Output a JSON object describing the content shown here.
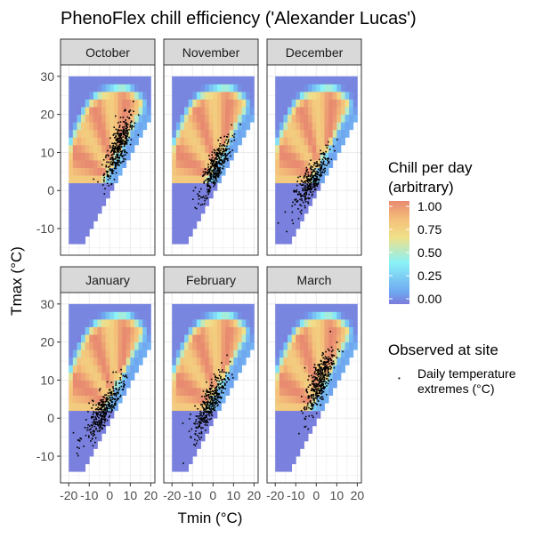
{
  "chart_data": {
    "type": "heatmap",
    "title": "PhenoFlex chill efficiency ('Alexander Lucas')",
    "xlabel": "Tmin (°C)",
    "ylabel": "Tmax (°C)",
    "xlim": [
      -24,
      22
    ],
    "ylim": [
      -17,
      33
    ],
    "x_ticks": [
      -20,
      -10,
      0,
      10,
      20
    ],
    "x_tick_labels": [
      "-20",
      "-10",
      "0",
      "10",
      "20"
    ],
    "y_ticks": [
      -10,
      0,
      10,
      20,
      30
    ],
    "y_tick_labels": [
      "-10",
      "0",
      "10",
      "20",
      "30"
    ],
    "grid": true,
    "facets": [
      "October",
      "November",
      "December",
      "January",
      "February",
      "March"
    ],
    "fill_legend": {
      "title_line1": "Chill per day",
      "title_line2": "(arbitrary)",
      "breaks": [
        1.0,
        0.75,
        0.5,
        0.25,
        0.0
      ],
      "labels": [
        "1.00",
        "0.75",
        "0.50",
        "0.25",
        "0.00"
      ],
      "colors": [
        "#7b7bdb",
        "#6fa8f0",
        "#8af2f7",
        "#f0e088",
        "#f4c07a",
        "#e88a70"
      ]
    },
    "point_legend": {
      "title": "Observed at site",
      "label_line1": "Daily temperature",
      "label_line2": "extremes (°C)"
    },
    "observed_clouds": {
      "October": {
        "tmin_mean": 4.0,
        "tmax_mean": 11.5,
        "tmin_sd": 3.5,
        "tmax_sd": 4.5
      },
      "November": {
        "tmin_mean": 1.0,
        "tmax_mean": 6.0,
        "tmin_sd": 3.8,
        "tmax_sd": 4.0
      },
      "December": {
        "tmin_mean": -2.0,
        "tmax_mean": 2.5,
        "tmin_sd": 4.5,
        "tmax_sd": 4.0
      },
      "January": {
        "tmin_mean": -3.0,
        "tmax_mean": 2.0,
        "tmin_sd": 5.0,
        "tmax_sd": 4.0
      },
      "February": {
        "tmin_mean": -1.5,
        "tmax_mean": 4.0,
        "tmin_sd": 4.0,
        "tmax_sd": 4.5
      },
      "March": {
        "tmin_mean": 1.0,
        "tmax_mean": 9.5,
        "tmin_sd": 3.5,
        "tmax_sd": 4.5
      }
    }
  }
}
